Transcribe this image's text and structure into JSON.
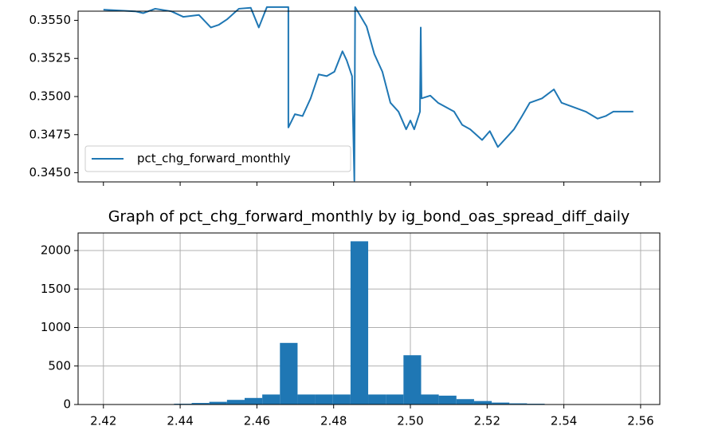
{
  "chart_data": [
    {
      "type": "line",
      "sharex": true,
      "x": [
        2.42,
        2.4283,
        2.4304,
        2.4335,
        2.4377,
        2.4408,
        2.4449,
        2.448,
        2.4501,
        2.4522,
        2.4553,
        2.4584,
        2.4605,
        2.4626,
        2.4682,
        2.4682,
        2.4699,
        2.4719,
        2.474,
        2.4761,
        2.4782,
        2.4802,
        2.4823,
        2.4834,
        2.4848,
        2.4854,
        2.4856,
        2.4886,
        2.4906,
        2.4927,
        2.4948,
        2.4969,
        2.4989,
        2.5,
        2.501,
        2.5025,
        2.5027,
        2.5029,
        2.5052,
        2.5072,
        2.5093,
        2.5114,
        2.5135,
        2.5156,
        2.5187,
        2.5207,
        2.5228,
        2.5249,
        2.527,
        2.5291,
        2.5311,
        2.5343,
        2.5374,
        2.5394,
        2.5426,
        2.5457,
        2.5488,
        2.5509,
        2.5529,
        2.5581
      ],
      "series": [
        {
          "name": "pct_chg_forward_monthly",
          "color": "#1f77b4",
          "values": [
            0.3557,
            0.35559,
            0.35547,
            0.35576,
            0.35559,
            0.35523,
            0.35535,
            0.35453,
            0.35471,
            0.35506,
            0.35576,
            0.35582,
            0.35453,
            0.35587,
            0.35587,
            0.34797,
            0.34884,
            0.34872,
            0.34988,
            0.35145,
            0.35134,
            0.35163,
            0.35297,
            0.35238,
            0.35134,
            0.34448,
            0.35587,
            0.35459,
            0.35279,
            0.35163,
            0.34959,
            0.34901,
            0.34785,
            0.34843,
            0.34785,
            0.34901,
            0.35453,
            0.34988,
            0.35006,
            0.34959,
            0.3493,
            0.34901,
            0.34814,
            0.34785,
            0.34715,
            0.34773,
            0.34669,
            0.34727,
            0.34785,
            0.34872,
            0.34959,
            0.34988,
            0.35047,
            0.34959,
            0.3493,
            0.34901,
            0.34855,
            0.34872,
            0.34901,
            0.34901
          ]
        }
      ],
      "ylim": [
        0.3444,
        0.3556
      ],
      "yticks": [
        {
          "value": 0.345,
          "label": "0.3450"
        },
        {
          "value": 0.3475,
          "label": "0.3475"
        },
        {
          "value": 0.35,
          "label": "0.3500"
        },
        {
          "value": 0.3525,
          "label": "0.3525"
        },
        {
          "value": 0.355,
          "label": "0.3550"
        }
      ],
      "legend": "lower left",
      "grid": false
    },
    {
      "type": "histogram",
      "title": "Graph of pct_chg_forward_monthly by ig_bond_oas_spread_diff_daily",
      "bins": [
        2.42,
        2.4246,
        2.4292,
        2.4338,
        2.4384,
        2.443,
        2.4476,
        2.4522,
        2.4568,
        2.4614,
        2.466,
        2.4706,
        2.4752,
        2.4798,
        2.4844,
        2.489,
        2.4936,
        2.4982,
        2.5028,
        2.5074,
        2.512,
        2.5166,
        2.5212,
        2.5258,
        2.5304,
        2.535,
        2.5396,
        2.5442,
        2.5488,
        2.5534,
        2.558
      ],
      "values": [
        0,
        0,
        1,
        2,
        10,
        20,
        35,
        60,
        85,
        130,
        800,
        130,
        130,
        130,
        2120,
        130,
        130,
        640,
        130,
        115,
        70,
        45,
        25,
        15,
        10,
        5,
        3,
        2,
        1,
        1
      ],
      "color": "#1f77b4",
      "xlim": [
        2.4134,
        2.565
      ],
      "xticks": [
        2.42,
        2.44,
        2.46,
        2.48,
        {
          "value": 2.5,
          "label": "2.50"
        },
        2.52,
        2.54,
        2.56
      ],
      "ylim": [
        0,
        2228
      ],
      "yticks": [
        0,
        500,
        1000,
        1500,
        2000
      ],
      "grid": true
    }
  ]
}
